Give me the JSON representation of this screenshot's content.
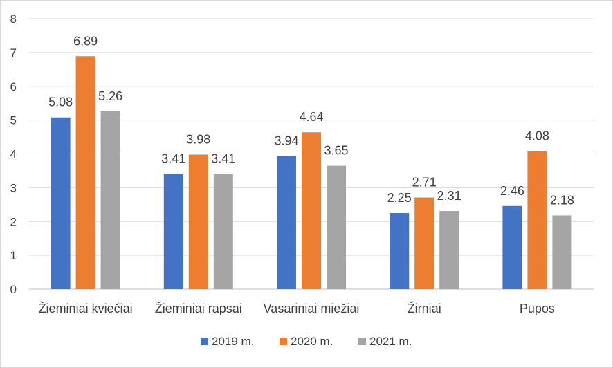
{
  "chart_data": {
    "type": "bar",
    "title": "",
    "xlabel": "",
    "ylabel": "",
    "ylim": [
      0,
      8
    ],
    "yticks": [
      "0",
      "1",
      "2",
      "3",
      "4",
      "5",
      "6",
      "7",
      "8"
    ],
    "grid": "horizontal",
    "legend_position": "bottom",
    "categories": [
      "Žieminiai kviečiai",
      "Žieminiai rapsai",
      "Vasariniai miežiai",
      "Žirniai",
      "Pupos"
    ],
    "series": [
      {
        "name": "2019 m.",
        "color": "#4472c4",
        "values": [
          5.08,
          3.41,
          3.94,
          2.25,
          2.46
        ]
      },
      {
        "name": "2020 m.",
        "color": "#ed7d31",
        "values": [
          6.89,
          3.98,
          4.64,
          2.71,
          4.08
        ]
      },
      {
        "name": "2021 m.",
        "color": "#a5a5a5",
        "values": [
          5.26,
          3.41,
          3.65,
          2.31,
          2.18
        ]
      }
    ]
  }
}
